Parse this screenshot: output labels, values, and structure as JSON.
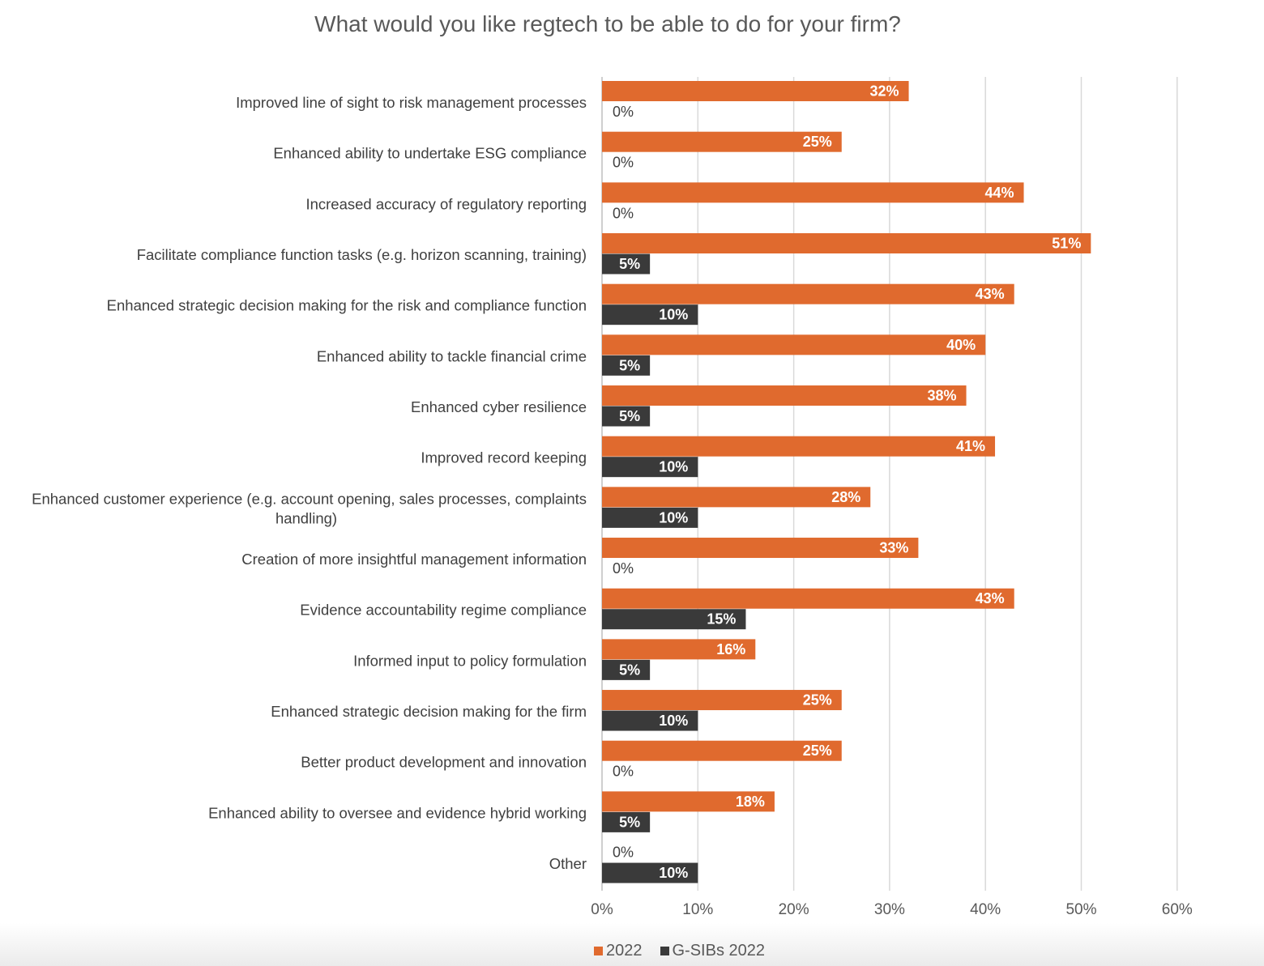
{
  "title": "What would you like regtech to be able to do for your firm?",
  "chart_data": {
    "type": "bar",
    "orientation": "horizontal",
    "title": "What would you like regtech to be able to do for your firm?",
    "categories": [
      "Improved line of sight to risk management processes",
      "Enhanced ability to undertake ESG compliance",
      "Increased accuracy of regulatory reporting",
      "Facilitate compliance function tasks (e.g. horizon scanning, training)",
      "Enhanced strategic decision making for the risk and compliance function",
      "Enhanced ability to tackle financial crime",
      "Enhanced cyber resilience",
      "Improved record keeping",
      "Enhanced customer experience (e.g. account opening, sales processes, complaints handling)",
      "Creation of more insightful management information",
      "Evidence accountability regime compliance",
      "Informed input to policy formulation",
      "Enhanced strategic decision making for the firm",
      "Better product development and innovation",
      "Enhanced ability to oversee and evidence hybrid working",
      "Other"
    ],
    "series": [
      {
        "name": "2022",
        "color": "#E06A2E",
        "values": [
          32,
          25,
          44,
          51,
          43,
          40,
          38,
          41,
          28,
          33,
          43,
          16,
          25,
          25,
          18,
          0
        ],
        "labels": [
          "32%",
          "25%",
          "44%",
          "51%",
          "43%",
          "40%",
          "38%",
          "41%",
          "28%",
          "33%",
          "43%",
          "16%",
          "25%",
          "25%",
          "18%",
          "0%"
        ]
      },
      {
        "name": "G-SIBs 2022",
        "color": "#3A3A3A",
        "values": [
          0,
          0,
          0,
          5,
          10,
          5,
          5,
          10,
          10,
          0,
          15,
          5,
          10,
          0,
          5,
          10
        ],
        "labels": [
          "0%",
          "0%",
          "0%",
          "5%",
          "10%",
          "5%",
          "5%",
          "10%",
          "10%",
          "0%",
          "15%",
          "5%",
          "10%",
          "0%",
          "5%",
          "10%"
        ]
      }
    ],
    "xlim": [
      0,
      60
    ],
    "xticks": [
      0,
      10,
      20,
      30,
      40,
      50,
      60
    ],
    "xtick_labels": [
      "0%",
      "10%",
      "20%",
      "30%",
      "40%",
      "50%",
      "60%"
    ],
    "grid": "vertical",
    "legend": "bottom-center",
    "data_labels": true
  }
}
